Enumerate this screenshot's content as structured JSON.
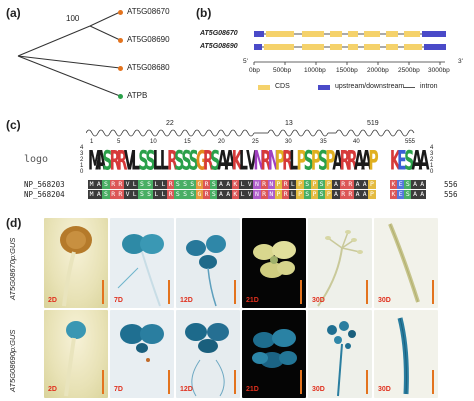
{
  "panels": {
    "a": "(a)",
    "b": "(b)",
    "c": "(c)",
    "d": "(d)"
  },
  "tree": {
    "bootstrap": "100",
    "leaves": [
      "AT5G08670",
      "AT5G08690",
      "AT5G08680",
      "ATPB"
    ],
    "leaf_colors": [
      "#e3731e",
      "#e3731e",
      "#e3731e",
      "#2aa04a"
    ]
  },
  "gene_structure": {
    "genes": [
      "AT5G08670",
      "AT5G08690"
    ],
    "end_left": "5'",
    "end_right": "3'",
    "ticks": [
      "0bp",
      "500bp",
      "1000bp",
      "1500bp",
      "2000bp",
      "2500bp",
      "3000bp"
    ],
    "legend": [
      "CDS",
      "upstream/downstream",
      "intron"
    ],
    "colors": {
      "cds": "#f5d26b",
      "utr": "#4a4ac8",
      "intron": "#555555"
    }
  },
  "alignment": {
    "logo_label": "logo",
    "helix_numbers": [
      "22",
      "13",
      "519"
    ],
    "positions": [
      "1",
      "5",
      "10",
      "15",
      "20",
      "25",
      "30",
      "35",
      "40",
      "555"
    ],
    "y_ticks": [
      "4",
      "3",
      "2",
      "1",
      "0"
    ],
    "sequences": [
      {
        "name": "NP_568203",
        "length": "556"
      },
      {
        "name": "NP_568204",
        "length": "556"
      }
    ],
    "logo_string": "MASRRVLSSLLRSSSGRSAAKLVNRNPRLPSPSPARRAAP--KESAA"
  },
  "gus": {
    "rows": [
      "AT5G08670p:GUS",
      "AT5G08690p:GUS"
    ],
    "days": [
      "2D",
      "7D",
      "12D",
      "21D",
      "30D",
      "30D"
    ]
  }
}
